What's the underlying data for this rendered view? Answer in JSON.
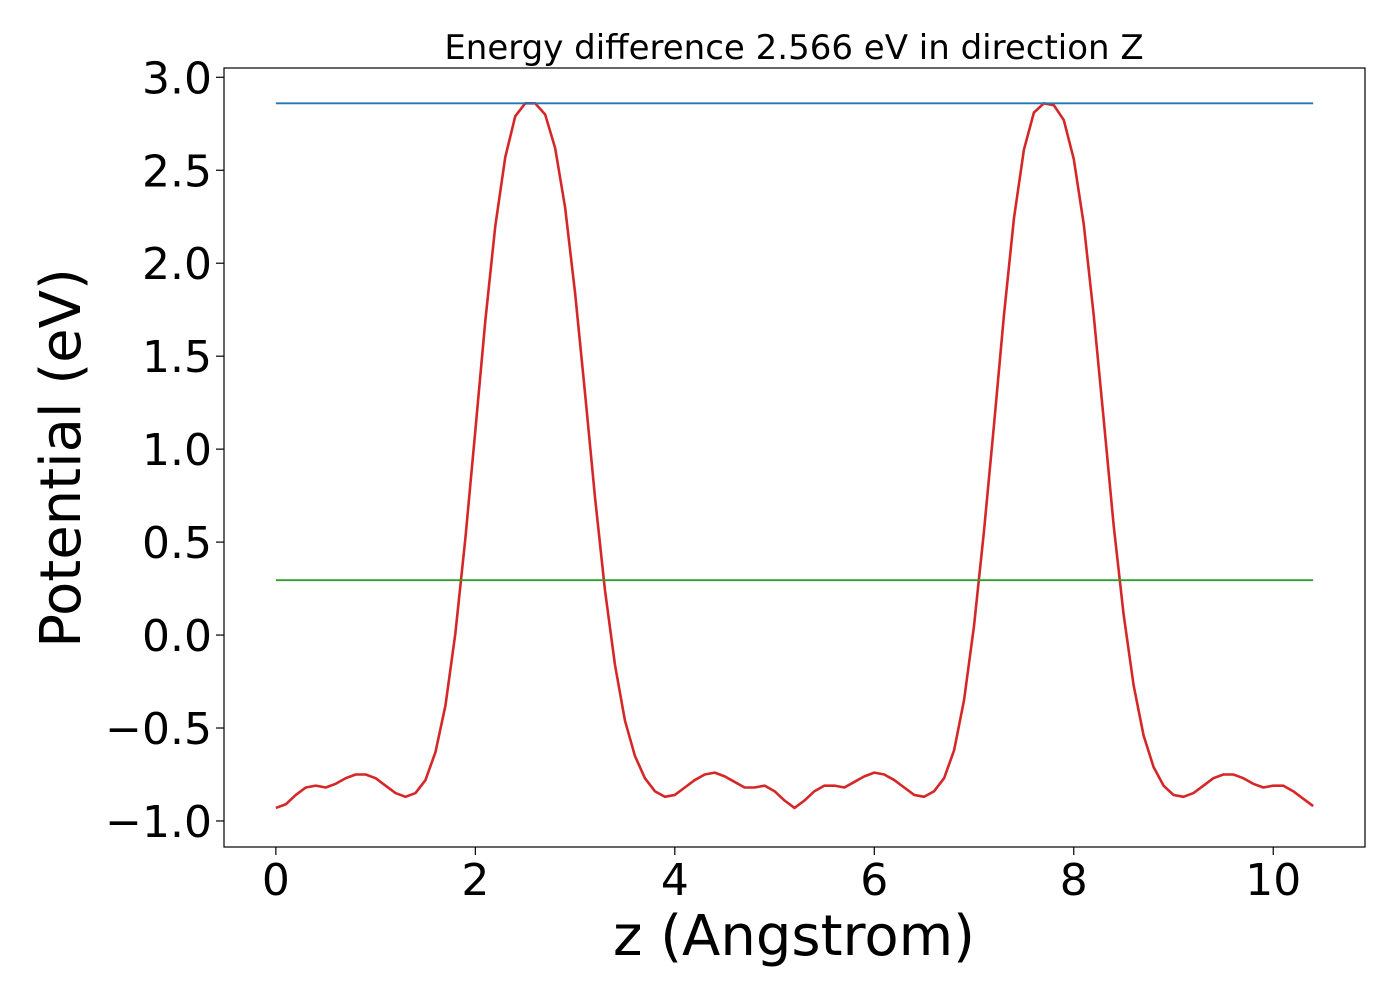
{
  "chart_data": {
    "type": "line",
    "title": "Energy difference 2.566 eV in direction Z",
    "xlabel": "z (Angstrom)",
    "ylabel": "Potential (eV)",
    "xlim": [
      -0.52,
      10.92
    ],
    "ylim": [
      -1.14,
      3.05
    ],
    "xticks": [
      0,
      2,
      4,
      6,
      8,
      10
    ],
    "xtick_labels": [
      "0",
      "2",
      "4",
      "6",
      "8",
      "10"
    ],
    "yticks": [
      -1.0,
      -0.5,
      0.0,
      0.5,
      1.0,
      1.5,
      2.0,
      2.5,
      3.0
    ],
    "ytick_labels": [
      "−1.0",
      "−0.5",
      "0.0",
      "0.5",
      "1.0",
      "1.5",
      "2.0",
      "2.5",
      "3.0"
    ],
    "grid": false,
    "series": [
      {
        "color": "#d62728",
        "x": [
          0.0,
          0.1,
          0.2,
          0.3,
          0.4,
          0.5,
          0.6,
          0.7,
          0.8,
          0.9,
          1.0,
          1.1,
          1.2,
          1.3,
          1.4,
          1.5,
          1.6,
          1.7,
          1.8,
          1.9,
          2.0,
          2.1,
          2.2,
          2.3,
          2.4,
          2.5,
          2.6,
          2.7,
          2.8,
          2.9,
          3.0,
          3.1,
          3.2,
          3.3,
          3.4,
          3.5,
          3.6,
          3.7,
          3.8,
          3.9,
          4.0,
          4.1,
          4.2,
          4.3,
          4.4,
          4.5,
          4.6,
          4.7,
          4.8,
          4.9,
          5.0,
          5.1,
          5.2,
          5.3,
          5.4,
          5.5,
          5.6,
          5.7,
          5.8,
          5.9,
          6.0,
          6.1,
          6.2,
          6.3,
          6.4,
          6.5,
          6.6,
          6.7,
          6.8,
          6.9,
          7.0,
          7.1,
          7.2,
          7.3,
          7.4,
          7.5,
          7.6,
          7.7,
          7.8,
          7.9,
          8.0,
          8.1,
          8.2,
          8.3,
          8.4,
          8.5,
          8.6,
          8.7,
          8.8,
          8.9,
          9.0,
          9.1,
          9.2,
          9.3,
          9.4,
          9.5,
          9.6,
          9.7,
          9.8,
          9.9,
          10.0,
          10.1,
          10.2,
          10.3,
          10.4
        ],
        "y": [
          -0.93,
          -0.91,
          -0.86,
          -0.82,
          -0.81,
          -0.82,
          -0.8,
          -0.77,
          -0.75,
          -0.75,
          -0.77,
          -0.81,
          -0.85,
          -0.87,
          -0.85,
          -0.78,
          -0.63,
          -0.38,
          0.01,
          0.52,
          1.1,
          1.69,
          2.2,
          2.57,
          2.79,
          2.86,
          2.86,
          2.8,
          2.62,
          2.3,
          1.84,
          1.3,
          0.74,
          0.24,
          -0.16,
          -0.46,
          -0.65,
          -0.77,
          -0.84,
          -0.87,
          -0.86,
          -0.82,
          -0.78,
          -0.75,
          -0.74,
          -0.76,
          -0.79,
          -0.82,
          -0.82,
          -0.81,
          -0.84,
          -0.89,
          -0.93,
          -0.89,
          -0.84,
          -0.81,
          -0.81,
          -0.82,
          -0.79,
          -0.76,
          -0.74,
          -0.75,
          -0.78,
          -0.82,
          -0.86,
          -0.87,
          -0.84,
          -0.77,
          -0.62,
          -0.35,
          0.05,
          0.56,
          1.13,
          1.72,
          2.24,
          2.61,
          2.81,
          2.86,
          2.85,
          2.77,
          2.56,
          2.21,
          1.72,
          1.16,
          0.59,
          0.11,
          -0.27,
          -0.54,
          -0.71,
          -0.81,
          -0.86,
          -0.87,
          -0.85,
          -0.81,
          -0.77,
          -0.75,
          -0.75,
          -0.77,
          -0.8,
          -0.82,
          -0.81,
          -0.81,
          -0.84,
          -0.88,
          -0.92
        ]
      },
      {
        "color": "#1f77b4",
        "x": [
          0.0,
          10.4
        ],
        "y": [
          2.86,
          2.86
        ]
      },
      {
        "color": "#2ca02c",
        "x": [
          0.0,
          10.4
        ],
        "y": [
          0.295,
          0.295
        ]
      }
    ]
  }
}
